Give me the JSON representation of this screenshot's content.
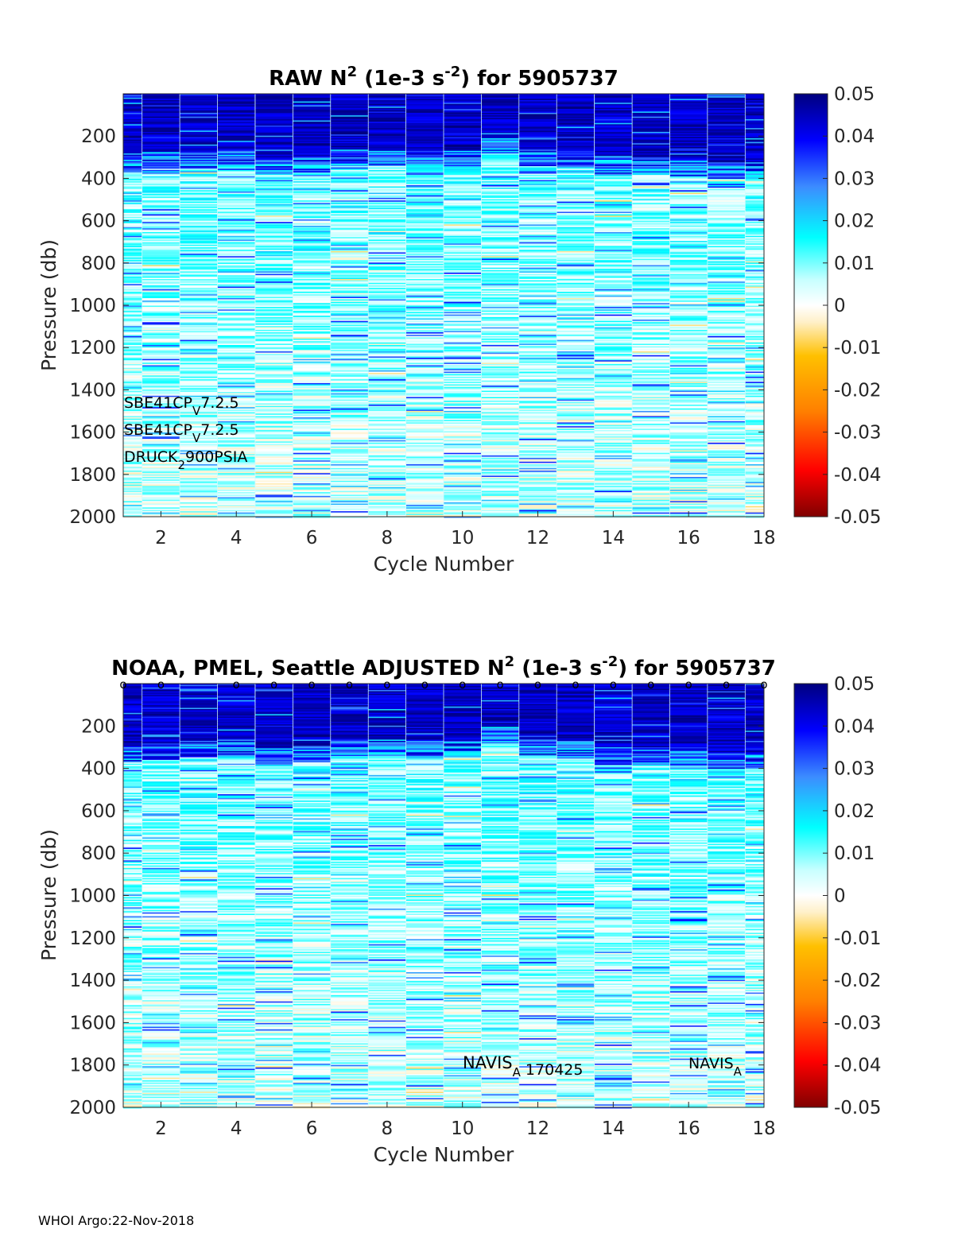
{
  "chart_data": [
    {
      "type": "heatmap",
      "title": {
        "main": "RAW N",
        "sup": "2",
        "mid": " (1e-3 s",
        "sup2": "-2",
        "end": ") for 5905737"
      },
      "xlabel": "Cycle Number",
      "ylabel": "Pressure (db)",
      "xlim": [
        1,
        18
      ],
      "ylim": [
        0,
        2000
      ],
      "y_reversed": true,
      "x_ticks": [
        "2",
        "4",
        "6",
        "8",
        "10",
        "12",
        "14",
        "16",
        "18"
      ],
      "y_ticks": [
        "200",
        "400",
        "600",
        "800",
        "1000",
        "1200",
        "1400",
        "1600",
        "1800",
        "2000"
      ],
      "colorbar": {
        "min": -0.05,
        "max": 0.05,
        "colormap": "jet",
        "ticks": [
          "0.05",
          "0.04",
          "0.03",
          "0.02",
          "0.01",
          "0",
          "-0.01",
          "-0.02",
          "-0.03",
          "-0.04",
          "-0.05"
        ]
      },
      "cycles": [
        1,
        2,
        3,
        4,
        5,
        6,
        7,
        8,
        9,
        10,
        11,
        12,
        13,
        14,
        15,
        16,
        17,
        18
      ],
      "strong_layer_bottom_db": [
        290,
        270,
        265,
        260,
        300,
        290,
        260,
        260,
        270,
        265,
        200,
        260,
        270,
        300,
        300,
        310,
        320,
        320
      ],
      "annotations": [
        {
          "main": "SBE41CP",
          "sub": "V",
          "post": "7.2.5"
        },
        {
          "main": "SBE41CP",
          "sub": "V",
          "post": "7.2.5"
        },
        {
          "main": "DRUCK",
          "sub": "2",
          "post": "900PSIA"
        }
      ]
    },
    {
      "type": "heatmap",
      "title": {
        "main": "NOAA, PMEL, Seattle  ADJUSTED N",
        "sup": "2",
        "mid": " (1e-3 s",
        "sup2": "-2",
        "end": ") for 5905737"
      },
      "xlabel": "Cycle Number",
      "ylabel": "Pressure (db)",
      "xlim": [
        1,
        18
      ],
      "ylim": [
        0,
        2000
      ],
      "y_reversed": true,
      "x_ticks": [
        "2",
        "4",
        "6",
        "8",
        "10",
        "12",
        "14",
        "16",
        "18"
      ],
      "y_ticks": [
        "200",
        "400",
        "600",
        "800",
        "1000",
        "1200",
        "1400",
        "1600",
        "1800",
        "2000"
      ],
      "colorbar": {
        "min": -0.05,
        "max": 0.05,
        "colormap": "jet",
        "ticks": [
          "0.05",
          "0.04",
          "0.03",
          "0.02",
          "0.01",
          "0",
          "-0.01",
          "-0.02",
          "-0.03",
          "-0.04",
          "-0.05"
        ]
      },
      "cycles": [
        1,
        2,
        3,
        4,
        5,
        6,
        7,
        8,
        9,
        10,
        11,
        12,
        13,
        14,
        15,
        16,
        17,
        18
      ],
      "strong_layer_bottom_db": [
        290,
        280,
        265,
        260,
        300,
        290,
        260,
        260,
        270,
        265,
        200,
        260,
        270,
        300,
        300,
        310,
        320,
        320
      ],
      "qc_marker": "o",
      "qc_marker_cycles": [
        1,
        2,
        4,
        5,
        6,
        7,
        8,
        9,
        10,
        11,
        12,
        13,
        14,
        15,
        16,
        17,
        18
      ],
      "annotations": [
        {
          "main": "NAVIS",
          "sub": "A",
          "post": " 170425",
          "cycle": 10
        },
        {
          "main": "NAVIS",
          "sub": "A",
          "post": "",
          "cycle": 16
        }
      ]
    }
  ],
  "footer": "WHOI Argo:22-Nov-2018"
}
